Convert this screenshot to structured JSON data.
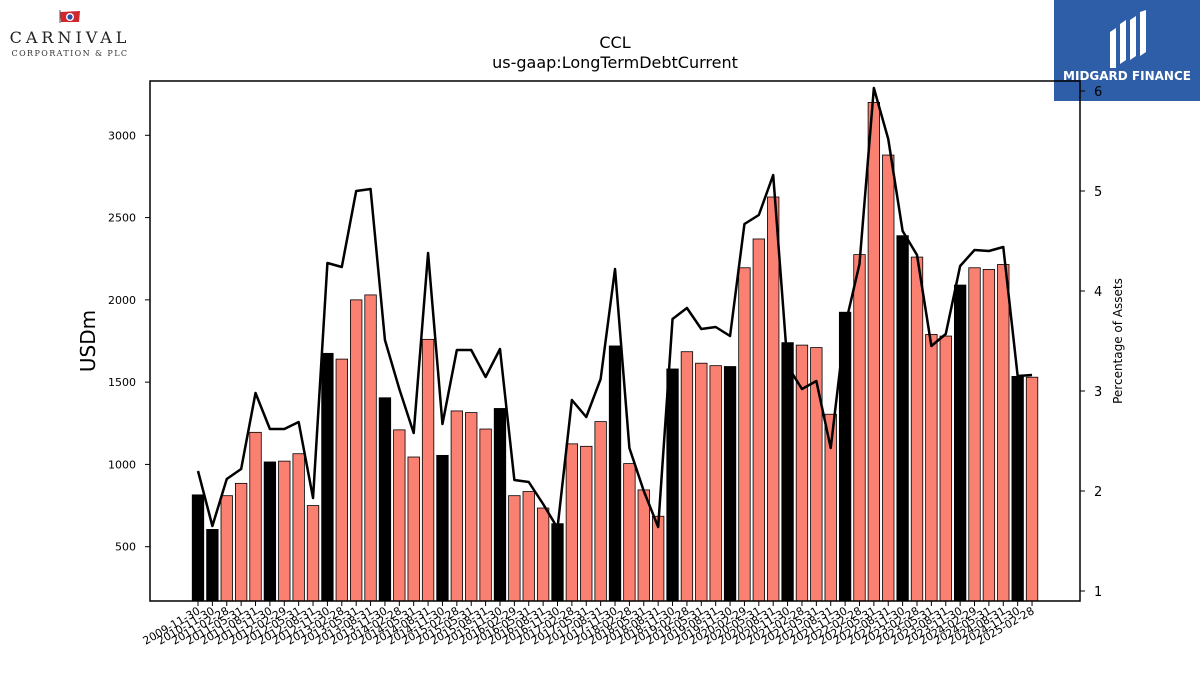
{
  "logos": {
    "left_brand": "CARNIVAL",
    "left_sub": "CORPORATION & PLC",
    "right_brand": "MIDGARD FINANCE"
  },
  "chart_data": {
    "type": "bar",
    "title": "CCL",
    "subtitle": "us-gaap:LongTermDebtCurrent",
    "ylabel": "USDm",
    "y2label": "Percentage of Assets",
    "ylim": [
      170,
      3330
    ],
    "y2lim": [
      0.9,
      6.1
    ],
    "yticks": [
      500,
      1000,
      1500,
      2000,
      2500,
      3000
    ],
    "y2ticks": [
      1,
      2,
      3,
      4,
      5,
      6
    ],
    "colors": {
      "annual_bar": "#000000",
      "quarter_bar": "#fa8072",
      "line": "#000000"
    },
    "categories": [
      "2009-11-30",
      "2010-11-30",
      "2011-02-28",
      "2011-05-31",
      "2011-08-31",
      "2011-11-30",
      "2012-02-29",
      "2012-05-31",
      "2012-08-31",
      "2012-11-30",
      "2013-02-28",
      "2013-05-31",
      "2013-08-31",
      "2013-11-30",
      "2014-02-28",
      "2014-05-31",
      "2014-08-31",
      "2014-11-30",
      "2015-02-28",
      "2015-05-31",
      "2015-08-31",
      "2015-11-30",
      "2016-02-29",
      "2016-05-31",
      "2016-08-31",
      "2016-11-30",
      "2017-02-28",
      "2017-05-31",
      "2017-08-31",
      "2017-11-30",
      "2018-02-28",
      "2018-05-31",
      "2018-08-31",
      "2018-11-30",
      "2019-02-28",
      "2019-05-31",
      "2019-08-31",
      "2019-11-30",
      "2020-02-29",
      "2020-05-31",
      "2020-08-31",
      "2020-11-30",
      "2021-02-28",
      "2021-05-31",
      "2021-08-31",
      "2021-11-30",
      "2022-02-28",
      "2022-05-31",
      "2022-08-31",
      "2022-11-30",
      "2023-02-28",
      "2023-05-31",
      "2023-08-31",
      "2023-11-30",
      "2024-02-29",
      "2024-05-31",
      "2024-08-31",
      "2024-11-30",
      "2025-02-28"
    ],
    "annual": [
      true,
      true,
      false,
      false,
      false,
      true,
      false,
      false,
      false,
      true,
      false,
      false,
      false,
      true,
      false,
      false,
      false,
      true,
      false,
      false,
      false,
      true,
      false,
      false,
      false,
      true,
      false,
      false,
      false,
      true,
      false,
      false,
      false,
      true,
      false,
      false,
      false,
      true,
      false,
      false,
      false,
      true,
      false,
      false,
      false,
      true,
      false,
      false,
      false,
      true,
      false,
      false,
      false,
      true,
      false,
      false,
      false,
      true,
      false
    ],
    "values": [
      815,
      605,
      810,
      885,
      1195,
      1015,
      1020,
      1065,
      750,
      1675,
      1640,
      2000,
      2030,
      1405,
      1210,
      1045,
      1760,
      1055,
      1325,
      1315,
      1215,
      1340,
      810,
      835,
      735,
      640,
      1125,
      1110,
      1260,
      1720,
      1005,
      845,
      685,
      1580,
      1685,
      1615,
      1600,
      1595,
      2195,
      2370,
      2625,
      1740,
      1725,
      1710,
      1305,
      1925,
      2275,
      3200,
      2880,
      2390,
      2260,
      1790,
      1780,
      2090,
      2195,
      2185,
      2215,
      1535,
      1530
    ],
    "pct_of_assets": [
      2.2,
      1.65,
      2.12,
      2.22,
      2.98,
      2.62,
      2.62,
      2.69,
      1.93,
      4.28,
      4.24,
      5.0,
      5.02,
      3.51,
      3.02,
      2.58,
      4.38,
      2.67,
      3.41,
      3.41,
      3.14,
      3.42,
      2.11,
      2.09,
      1.87,
      1.63,
      2.91,
      2.74,
      3.12,
      4.22,
      2.43,
      2.0,
      1.64,
      3.72,
      3.83,
      3.62,
      3.64,
      3.55,
      4.67,
      4.76,
      5.16,
      3.25,
      3.02,
      3.1,
      2.43,
      3.65,
      4.27,
      6.03,
      5.52,
      4.6,
      4.36,
      3.45,
      3.57,
      4.25,
      4.41,
      4.4,
      4.44,
      3.15,
      3.16
    ]
  }
}
